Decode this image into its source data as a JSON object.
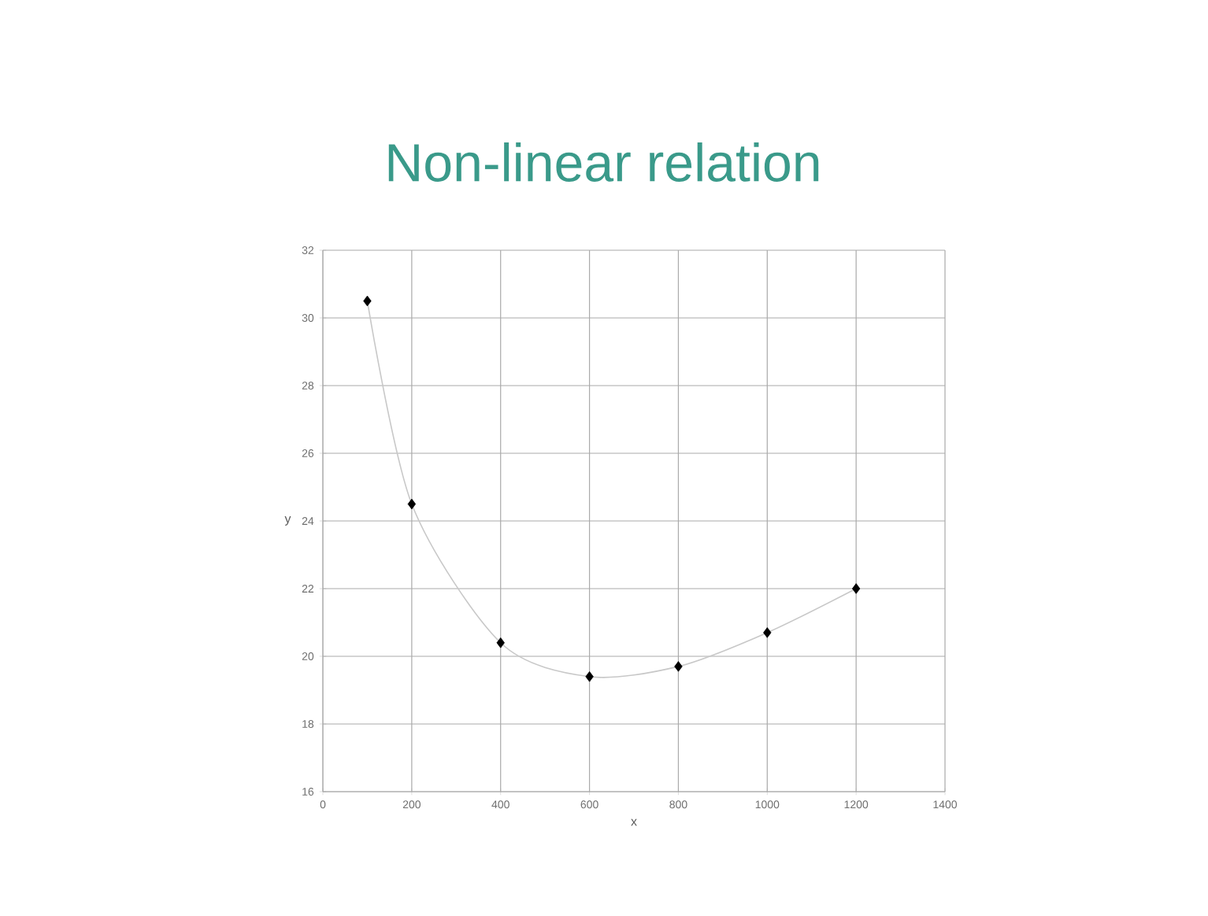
{
  "chart_data": {
    "type": "scatter",
    "title": "Non-linear relation",
    "xlabel": "x",
    "ylabel": "y",
    "xlim": [
      0,
      1400
    ],
    "xticks": [
      0,
      200,
      400,
      600,
      800,
      1000,
      1200,
      1400
    ],
    "ylim": [
      16,
      32
    ],
    "yticks": [
      16,
      18,
      20,
      22,
      24,
      26,
      28,
      30,
      32
    ],
    "grid": true,
    "marker": "diamond",
    "series": [
      {
        "color": "#000000",
        "x": [
          100,
          200,
          400,
          600,
          800,
          1000,
          1200
        ],
        "values": [
          30.5,
          24.5,
          20.4,
          19.4,
          19.7,
          20.7,
          22.0
        ]
      },
      {
        "type": "line",
        "color": "#c8c8c8",
        "line_style": "solid",
        "marker": "none",
        "x": [
          100,
          200,
          400,
          600,
          800,
          1000,
          1200
        ],
        "values": [
          30.5,
          24.5,
          20.4,
          19.4,
          19.7,
          20.7,
          22.0
        ]
      }
    ]
  }
}
